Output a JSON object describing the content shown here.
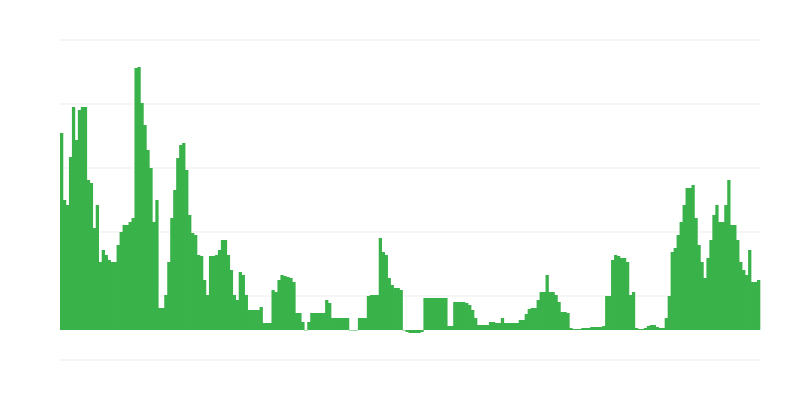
{
  "chart_data": {
    "type": "bar",
    "title": "",
    "xlabel": "",
    "ylabel": "",
    "ylim": [
      -30,
      290
    ],
    "gridlines": [
      -30,
      34,
      98,
      162,
      226,
      290
    ],
    "grid": true,
    "legend": "none",
    "color": "#39b24a",
    "grid_color": "#eeeeee",
    "values": [
      197,
      130,
      125,
      173,
      223,
      190,
      220,
      223,
      223,
      150,
      147,
      102,
      125,
      68,
      80,
      75,
      70,
      68,
      68,
      85,
      98,
      105,
      105,
      108,
      112,
      262,
      263,
      227,
      205,
      180,
      162,
      108,
      130,
      22,
      22,
      35,
      68,
      112,
      140,
      172,
      185,
      187,
      160,
      115,
      97,
      95,
      75,
      74,
      50,
      35,
      74,
      74,
      75,
      80,
      90,
      90,
      75,
      60,
      35,
      30,
      58,
      55,
      35,
      20,
      20,
      20,
      20,
      23,
      7,
      7,
      7,
      40,
      38,
      50,
      55,
      54,
      53,
      52,
      48,
      17,
      17,
      8,
      0,
      8,
      17,
      17,
      17,
      17,
      17,
      30,
      27,
      12,
      12,
      12,
      12,
      12,
      12,
      0,
      0,
      0,
      12,
      12,
      12,
      34,
      35,
      35,
      35,
      92,
      78,
      75,
      52,
      45,
      42,
      42,
      40,
      0,
      -2,
      -3,
      -3,
      -3,
      -3,
      -2,
      32,
      32,
      32,
      32,
      32,
      32,
      32,
      32,
      4,
      4,
      28,
      28,
      28,
      28,
      27,
      25,
      20,
      12,
      5,
      5,
      5,
      5,
      8,
      8,
      7,
      7,
      12,
      7,
      7,
      7,
      7,
      7,
      10,
      10,
      16,
      21,
      22,
      22,
      30,
      38,
      38,
      55,
      38,
      38,
      35,
      28,
      18,
      18,
      17,
      2,
      1,
      1,
      1,
      2,
      2,
      2,
      3,
      3,
      3,
      3,
      4,
      34,
      34,
      70,
      75,
      74,
      72,
      72,
      68,
      35,
      38,
      2,
      1,
      1,
      2,
      4,
      5,
      5,
      3,
      2,
      2,
      12,
      34,
      78,
      82,
      95,
      108,
      125,
      142,
      142,
      145,
      112,
      85,
      68,
      52,
      72,
      90,
      115,
      125,
      108,
      108,
      125,
      150,
      105,
      105,
      90,
      68,
      60,
      55,
      80,
      48,
      48,
      50
    ]
  }
}
